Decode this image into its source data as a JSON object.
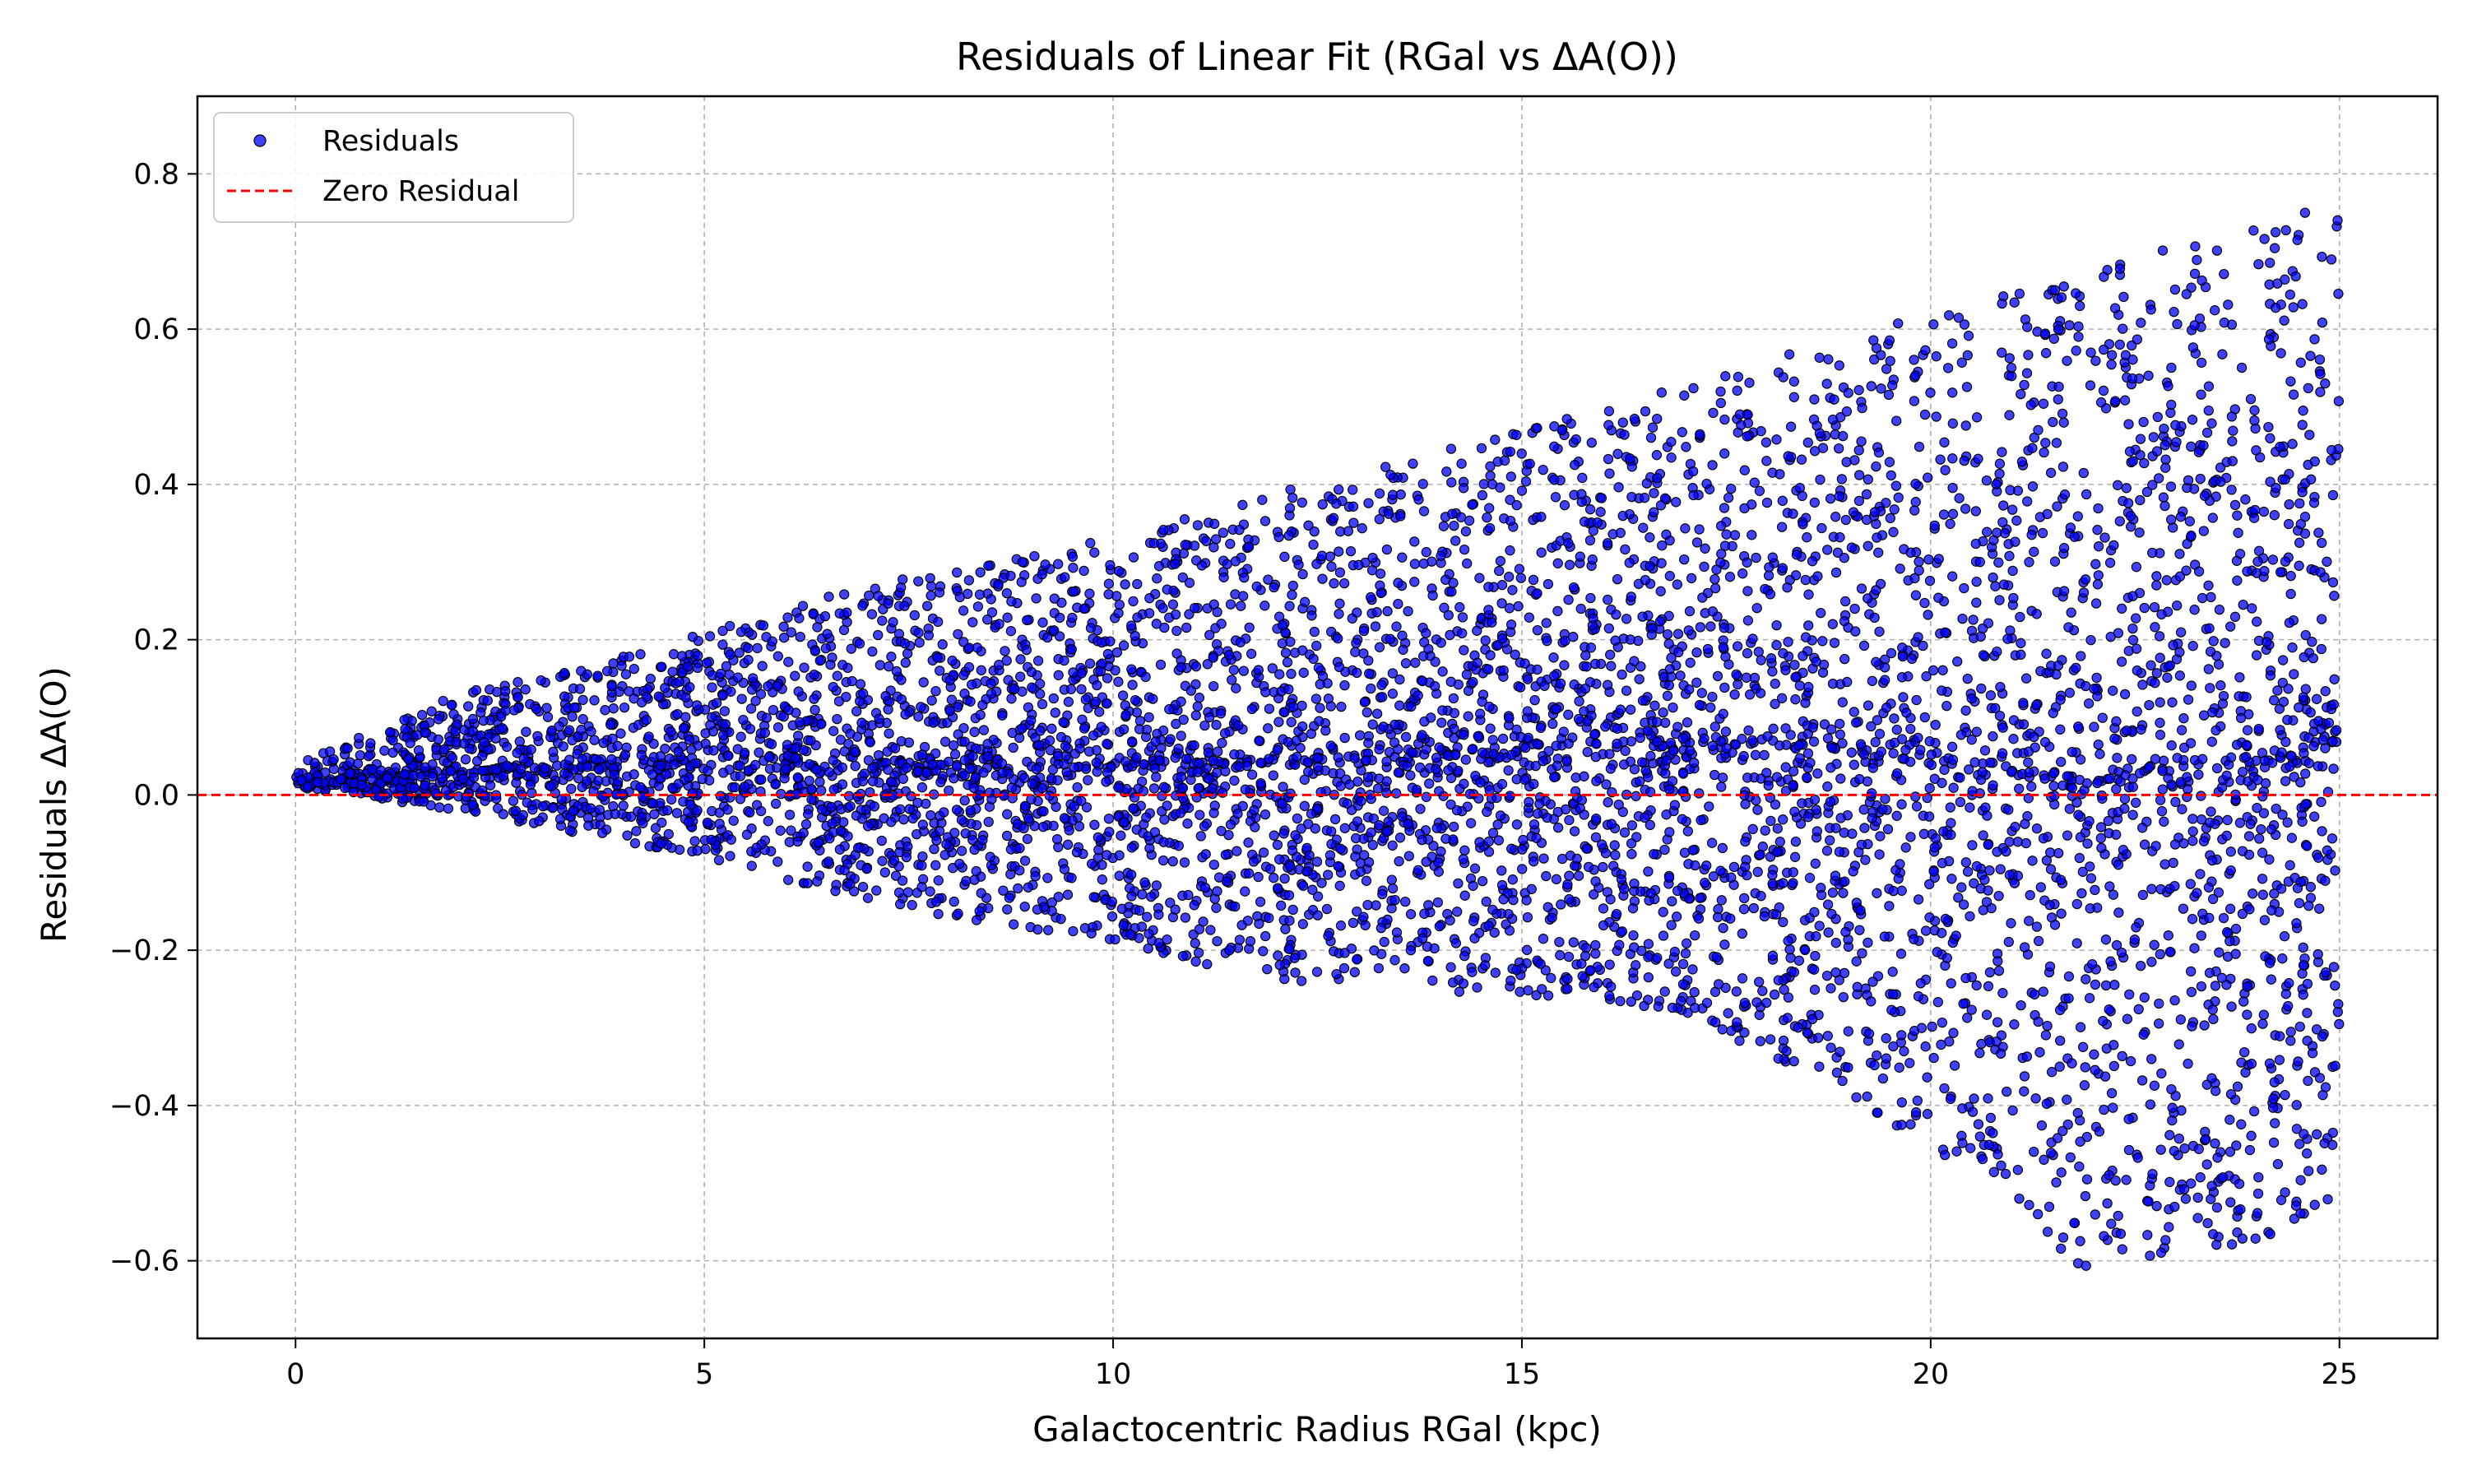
{
  "chart_data": {
    "type": "scatter",
    "title": "Residuals of Linear Fit (RGal vs ΔA(O))",
    "xlabel": "Galactocentric Radius RGal (kpc)",
    "ylabel": "Residuals ΔA(O)",
    "xlim": [
      -1.2,
      26.2
    ],
    "ylim": [
      -0.7,
      0.9
    ],
    "xticks": [
      0,
      5,
      10,
      15,
      20,
      25
    ],
    "yticks": [
      -0.6,
      -0.4,
      -0.2,
      0.0,
      0.2,
      0.4,
      0.6,
      0.8
    ],
    "xtick_labels": [
      "0",
      "5",
      "10",
      "15",
      "20",
      "25"
    ],
    "ytick_labels": [
      "−0.6",
      "−0.4",
      "−0.2",
      "0.0",
      "0.2",
      "0.4",
      "0.6",
      "0.8"
    ],
    "grid": true,
    "legend_position": "upper-left",
    "series": [
      {
        "name": "Residuals",
        "kind": "scatter",
        "color": "#0000ff",
        "edge_color": "#000000",
        "x_range": [
          0.0,
          25.0
        ],
        "envelope": {
          "x": [
            0,
            2,
            5,
            7,
            10,
            12,
            15,
            17,
            20,
            22,
            24,
            25
          ],
          "upper": [
            0.04,
            0.13,
            0.21,
            0.27,
            0.33,
            0.39,
            0.47,
            0.53,
            0.62,
            0.68,
            0.74,
            0.76
          ],
          "lower": [
            0.01,
            -0.02,
            -0.08,
            -0.14,
            -0.19,
            -0.24,
            -0.26,
            -0.28,
            -0.45,
            -0.62,
            -0.58,
            -0.52
          ]
        }
      },
      {
        "name": "Zero Residual",
        "kind": "hline",
        "y": 0.0,
        "color": "#ff0000",
        "linestyle": "dashed"
      }
    ]
  }
}
